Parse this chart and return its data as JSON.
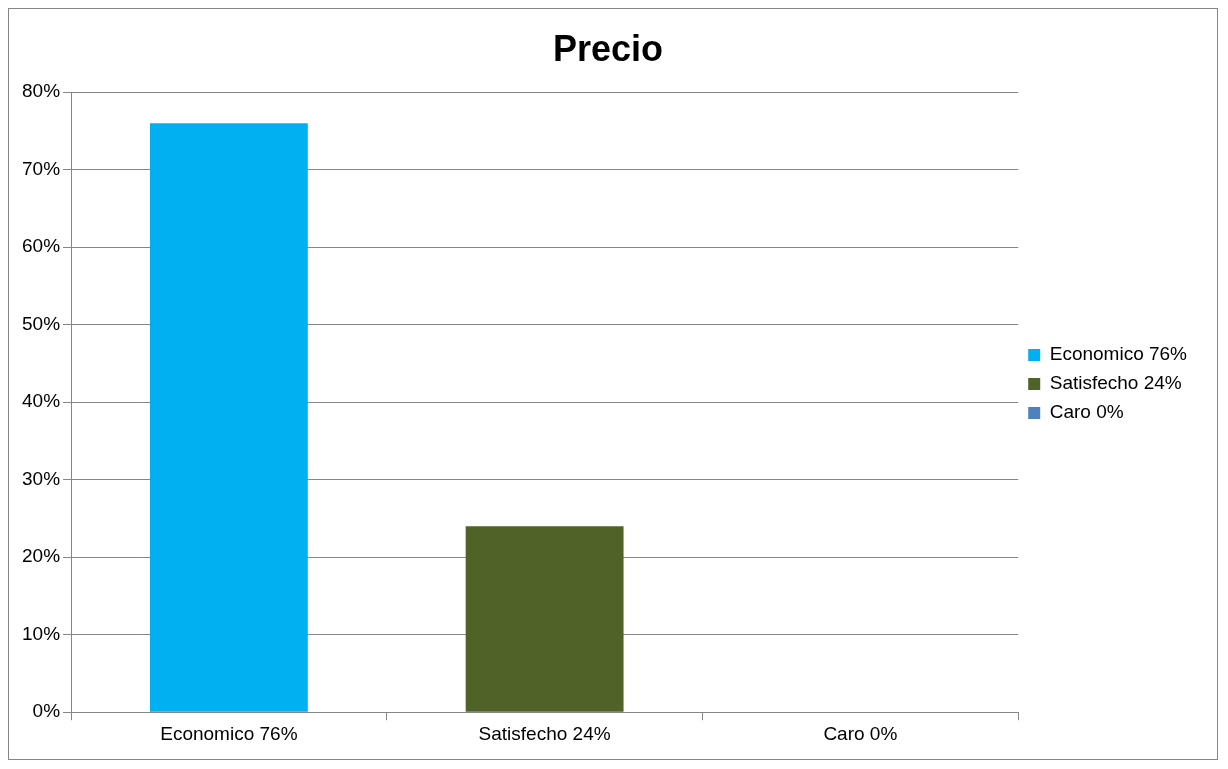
{
  "chart_data": {
    "type": "bar",
    "title": "Precio",
    "categories": [
      "Economico 76%",
      "Satisfecho 24%",
      "Caro 0%"
    ],
    "series": [
      {
        "name": "Economico 76%",
        "color": "#00b0f0",
        "values": [
          76,
          null,
          null
        ]
      },
      {
        "name": "Satisfecho 24%",
        "color": "#4f6228",
        "values": [
          null,
          24,
          null
        ]
      },
      {
        "name": "Caro 0%",
        "color": "#4f81bd",
        "values": [
          null,
          null,
          0
        ]
      }
    ],
    "ylim": [
      0,
      80
    ],
    "yticks": [
      {
        "value": 0,
        "label": "0%"
      },
      {
        "value": 10,
        "label": "10%"
      },
      {
        "value": 20,
        "label": "20%"
      },
      {
        "value": 30,
        "label": "30%"
      },
      {
        "value": 40,
        "label": "40%"
      },
      {
        "value": 50,
        "label": "50%"
      },
      {
        "value": 60,
        "label": "60%"
      },
      {
        "value": 70,
        "label": "70%"
      },
      {
        "value": 80,
        "label": "80%"
      }
    ],
    "grid": "y",
    "legend": "right"
  }
}
